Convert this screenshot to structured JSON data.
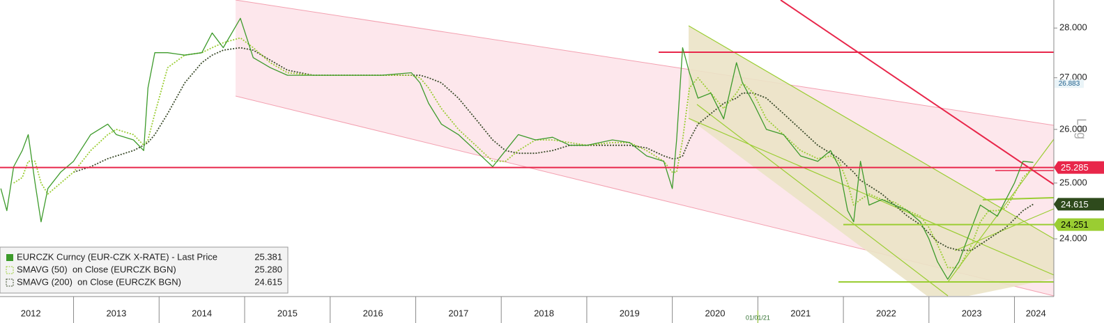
{
  "chart_data": {
    "type": "line",
    "log_scale": true,
    "scale_label": "Log",
    "xlim": [
      2012.14,
      2024.46
    ],
    "ylim": [
      23.02,
      28.58
    ],
    "yticks": [
      {
        "value": 24,
        "label": "24.000"
      },
      {
        "value": 25,
        "label": "25.000"
      },
      {
        "value": 26,
        "label": "26.000"
      },
      {
        "value": 27,
        "label": "27.000"
      },
      {
        "value": 28,
        "label": "28.000"
      }
    ],
    "xticks": [
      {
        "value": 2012.5,
        "label": "2012"
      },
      {
        "value": 2013.5,
        "label": "2013"
      },
      {
        "value": 2014.5,
        "label": "2014"
      },
      {
        "value": 2015.5,
        "label": "2015"
      },
      {
        "value": 2016.5,
        "label": "2016"
      },
      {
        "value": 2017.5,
        "label": "2017"
      },
      {
        "value": 2018.5,
        "label": "2018"
      },
      {
        "value": 2019.5,
        "label": "2019"
      },
      {
        "value": 2020.5,
        "label": "2020"
      },
      {
        "value": 2021.5,
        "label": "2021"
      },
      {
        "value": 2022.5,
        "label": "2022"
      },
      {
        "value": 2023.5,
        "label": "2023"
      },
      {
        "value": 2024.25,
        "label": "2024"
      }
    ],
    "date_marker": {
      "value": 2021.0,
      "label": "01/01/21"
    },
    "x": [
      2012.15,
      2012.22,
      2012.3,
      2012.4,
      2012.47,
      2012.55,
      2012.62,
      2012.7,
      2012.85,
      2013.0,
      2013.2,
      2013.4,
      2013.5,
      2013.7,
      2013.82,
      2013.87,
      2013.95,
      2014.1,
      2014.3,
      2014.5,
      2014.62,
      2014.75,
      2014.95,
      2015.1,
      2015.3,
      2015.5,
      2015.8,
      2016.2,
      2016.6,
      2016.95,
      2017.05,
      2017.15,
      2017.3,
      2017.5,
      2017.7,
      2017.9,
      2018.05,
      2018.2,
      2018.4,
      2018.6,
      2018.8,
      2019.0,
      2019.3,
      2019.5,
      2019.7,
      2019.9,
      2020.0,
      2020.05,
      2020.12,
      2020.2,
      2020.3,
      2020.45,
      2020.6,
      2020.75,
      2020.82,
      2020.95,
      2021.1,
      2021.3,
      2021.5,
      2021.7,
      2021.85,
      2021.95,
      2022.05,
      2022.12,
      2022.2,
      2022.3,
      2022.45,
      2022.6,
      2022.75,
      2022.9,
      2023.0,
      2023.1,
      2023.22,
      2023.35,
      2023.5,
      2023.6,
      2023.7,
      2023.8,
      2023.9,
      2024.0,
      2024.1,
      2024.22
    ],
    "series": [
      {
        "name": "EURCZK Curncy (EUR-CZK X-RATE) - Last Price",
        "color": "#3c9a2a",
        "style": "solid",
        "last": 25.381,
        "values": [
          24.9,
          24.5,
          25.3,
          25.6,
          25.9,
          25.0,
          24.3,
          24.9,
          25.2,
          25.4,
          25.9,
          26.1,
          25.9,
          25.8,
          25.6,
          26.8,
          27.5,
          27.5,
          27.45,
          27.5,
          27.9,
          27.6,
          28.2,
          27.4,
          27.2,
          27.05,
          27.05,
          27.05,
          27.05,
          27.1,
          26.9,
          26.5,
          26.1,
          25.9,
          25.6,
          25.3,
          25.6,
          25.9,
          25.8,
          25.85,
          25.7,
          25.7,
          25.8,
          25.75,
          25.5,
          25.4,
          24.9,
          25.8,
          27.6,
          27.1,
          26.6,
          26.7,
          26.2,
          27.3,
          26.9,
          26.5,
          26.0,
          25.9,
          25.5,
          25.4,
          25.6,
          25.3,
          24.5,
          24.3,
          25.4,
          24.6,
          24.7,
          24.6,
          24.5,
          24.3,
          24.0,
          23.6,
          23.3,
          23.6,
          24.2,
          24.6,
          24.5,
          24.4,
          24.7,
          25.0,
          25.4,
          25.38
        ]
      },
      {
        "name": "SMAVG (50)  on Close (EURCZK BGN)",
        "color": "#9acd32",
        "style": "dotted",
        "last": {
          "value": 25.28,
          "label": "25.280"
        },
        "values": [
          null,
          null,
          25.0,
          25.1,
          25.4,
          25.4,
          25.0,
          24.8,
          25.0,
          25.2,
          25.6,
          25.9,
          26.0,
          25.9,
          25.7,
          25.8,
          26.3,
          27.2,
          27.45,
          27.5,
          27.6,
          27.7,
          27.8,
          27.6,
          27.3,
          27.1,
          27.05,
          27.05,
          27.05,
          27.05,
          27.0,
          26.8,
          26.4,
          26.0,
          25.7,
          25.4,
          25.4,
          25.6,
          25.8,
          25.8,
          25.75,
          25.7,
          25.75,
          25.75,
          25.6,
          25.4,
          25.2,
          25.2,
          25.8,
          26.8,
          27.0,
          26.7,
          26.4,
          26.7,
          26.9,
          26.7,
          26.2,
          25.9,
          25.6,
          25.45,
          25.5,
          25.4,
          25.0,
          24.6,
          24.7,
          24.8,
          24.7,
          24.65,
          24.5,
          24.4,
          24.2,
          23.9,
          23.5,
          23.5,
          23.9,
          24.3,
          24.5,
          24.5,
          24.55,
          24.8,
          25.1,
          25.28
        ]
      },
      {
        "name": "SMAVG (200)  on Close (EURCZK BGN)",
        "color": "#3a4a2a",
        "style": "dotted",
        "last": 24.615,
        "values": [
          null,
          null,
          null,
          null,
          null,
          null,
          null,
          null,
          null,
          25.2,
          25.3,
          25.45,
          25.5,
          25.6,
          25.7,
          25.75,
          25.9,
          26.3,
          26.9,
          27.3,
          27.45,
          27.55,
          27.6,
          27.55,
          27.35,
          27.15,
          27.05,
          27.05,
          27.05,
          27.05,
          27.05,
          27.0,
          26.9,
          26.6,
          26.2,
          25.8,
          25.6,
          25.55,
          25.55,
          25.6,
          25.7,
          25.7,
          25.7,
          25.7,
          25.65,
          25.5,
          25.45,
          25.45,
          25.5,
          25.8,
          26.1,
          26.3,
          26.5,
          26.6,
          26.7,
          26.7,
          26.6,
          26.3,
          26.0,
          25.7,
          25.55,
          25.45,
          25.3,
          25.2,
          25.05,
          24.95,
          24.8,
          24.6,
          24.4,
          24.25,
          24.1,
          23.95,
          23.85,
          23.8,
          23.8,
          23.9,
          24.0,
          24.1,
          24.2,
          24.35,
          24.5,
          24.615
        ]
      }
    ],
    "markers": [
      {
        "value": 26.883,
        "color": "#eaf4f8",
        "text_color": "#1c5d8a",
        "style": "small"
      },
      {
        "value": 25.285,
        "color": "#e8264a",
        "text_color": "#ffffff",
        "style": "box"
      },
      {
        "value": 24.615,
        "color": "#2e4a1c",
        "text_color": "#ffffff",
        "style": "box"
      },
      {
        "value": 24.251,
        "color": "#9acd32",
        "text_color": "#000000",
        "style": "box"
      }
    ]
  }
}
